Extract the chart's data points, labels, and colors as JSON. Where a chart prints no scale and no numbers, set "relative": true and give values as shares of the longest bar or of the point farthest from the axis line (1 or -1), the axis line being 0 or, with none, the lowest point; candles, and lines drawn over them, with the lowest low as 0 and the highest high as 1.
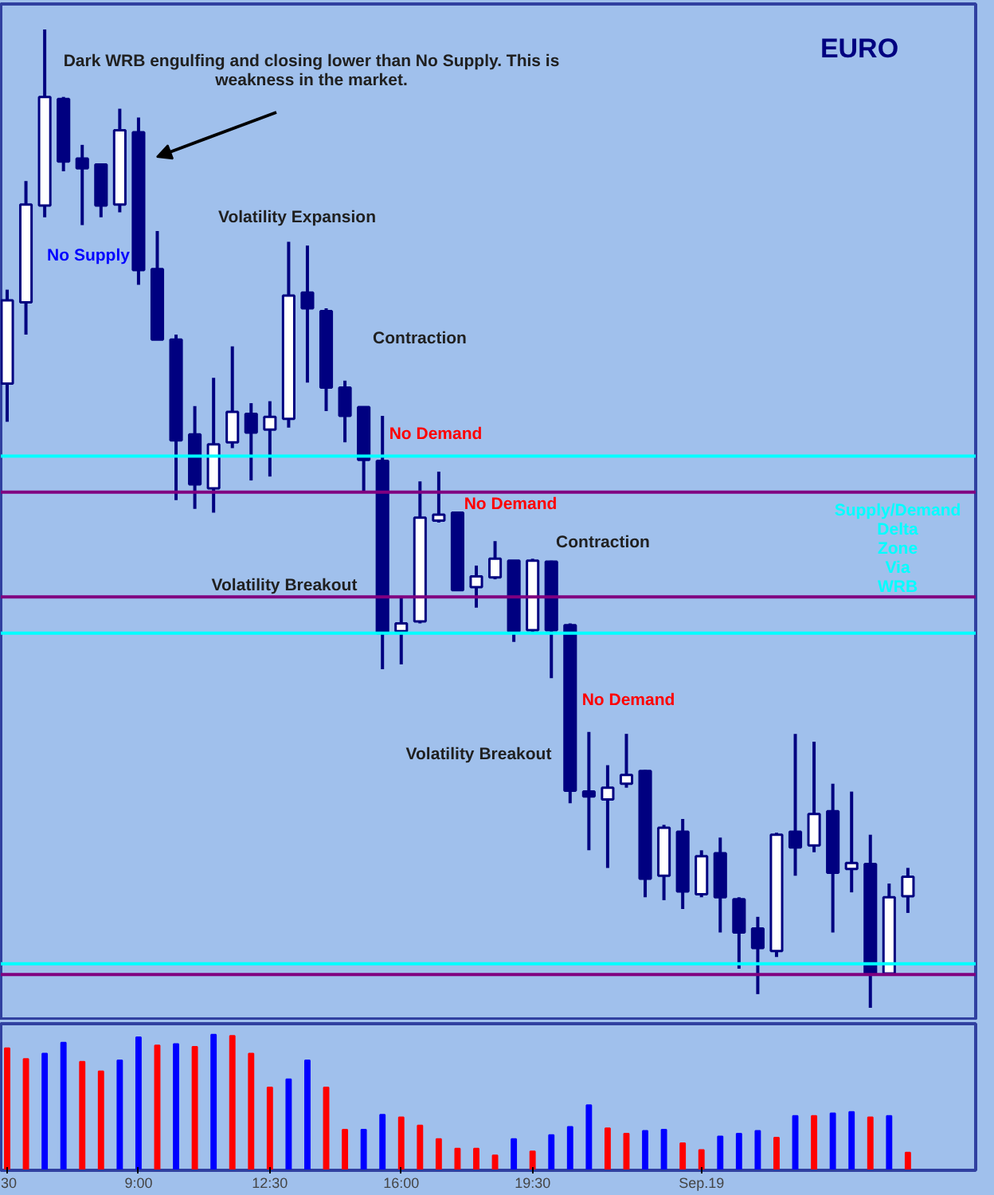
{
  "chart_data": [
    {
      "type": "candlestick",
      "title": "EURO",
      "relative": true,
      "categories": [
        null,
        null,
        null,
        null,
        null,
        null,
        null,
        null,
        null,
        null,
        null,
        null,
        null,
        null,
        null,
        null,
        null,
        null,
        null,
        null,
        null,
        null,
        null,
        null,
        null,
        null,
        null,
        null,
        null,
        null,
        null,
        null,
        null,
        null,
        null,
        null,
        null,
        null,
        null,
        null,
        null,
        null,
        null,
        null,
        null,
        null,
        null,
        null,
        null
      ],
      "ohlc": [
        [
          0.638,
          0.734,
          0.599,
          0.723
        ],
        [
          0.721,
          0.845,
          0.688,
          0.821
        ],
        [
          0.82,
          1,
          0.808,
          0.931
        ],
        [
          0.929,
          0.931,
          0.855,
          0.865
        ],
        [
          0.868,
          0.882,
          0.8,
          0.858
        ],
        [
          0.862,
          0.862,
          0.808,
          0.82
        ],
        [
          0.821,
          0.919,
          0.813,
          0.897
        ],
        [
          0.895,
          0.91,
          0.739,
          0.754
        ],
        [
          0.755,
          0.794,
          0.683,
          0.683
        ],
        [
          0.683,
          0.688,
          0.519,
          0.58
        ],
        [
          0.586,
          0.615,
          0.51,
          0.535
        ],
        [
          0.531,
          0.644,
          0.506,
          0.576
        ],
        [
          0.578,
          0.676,
          0.572,
          0.609
        ],
        [
          0.607,
          0.618,
          0.539,
          0.588
        ],
        [
          0.591,
          0.62,
          0.543,
          0.604
        ],
        [
          0.602,
          0.783,
          0.593,
          0.728
        ],
        [
          0.731,
          0.779,
          0.639,
          0.715
        ],
        [
          0.712,
          0.715,
          0.61,
          0.634
        ],
        [
          0.634,
          0.641,
          0.578,
          0.605
        ],
        [
          0.614,
          0.614,
          0.527,
          0.56
        ],
        [
          0.559,
          0.605,
          0.346,
          0.383
        ],
        [
          0.385,
          0.419,
          0.351,
          0.393
        ],
        [
          0.395,
          0.538,
          0.393,
          0.501
        ],
        [
          0.498,
          0.548,
          0.496,
          0.504
        ],
        [
          0.506,
          0.506,
          0.427,
          0.427
        ],
        [
          0.43,
          0.452,
          0.409,
          0.441
        ],
        [
          0.44,
          0.477,
          0.438,
          0.459
        ],
        [
          0.457,
          0.457,
          0.374,
          0.385
        ],
        [
          0.386,
          0.459,
          0.383,
          0.457
        ],
        [
          0.456,
          0.457,
          0.337,
          0.386
        ],
        [
          0.391,
          0.393,
          0.209,
          0.222
        ],
        [
          0.221,
          0.282,
          0.161,
          0.216
        ],
        [
          0.213,
          0.248,
          0.143,
          0.225
        ],
        [
          0.229,
          0.28,
          0.225,
          0.238
        ],
        [
          0.242,
          0.243,
          0.113,
          0.132
        ],
        [
          0.135,
          0.187,
          0.11,
          0.184
        ],
        [
          0.18,
          0.193,
          0.101,
          0.119
        ],
        [
          0.116,
          0.161,
          0.113,
          0.155
        ],
        [
          0.158,
          0.174,
          0.077,
          0.113
        ],
        [
          0.111,
          0.113,
          0.04,
          0.077
        ],
        [
          0.081,
          0.093,
          0.014,
          0.061
        ],
        [
          0.058,
          0.179,
          0.052,
          0.177
        ],
        [
          0.18,
          0.28,
          0.135,
          0.164
        ],
        [
          0.166,
          0.272,
          0.159,
          0.198
        ],
        [
          0.201,
          0.229,
          0.077,
          0.138
        ],
        [
          0.142,
          0.221,
          0.118,
          0.148
        ],
        [
          0.147,
          0.177,
          0,
          0.035
        ],
        [
          0.035,
          0.127,
          0.035,
          0.113
        ],
        [
          0.114,
          0.143,
          0.097,
          0.134
        ]
      ],
      "ref_lines": [
        {
          "axis": "y",
          "value": 0.564,
          "color": "#00ffff"
        },
        {
          "axis": "y",
          "value": 0.383,
          "color": "#00ffff"
        },
        {
          "axis": "y",
          "value": 0.045,
          "color": "#00ffff"
        },
        {
          "axis": "y",
          "value": 0.527,
          "color": "#800080"
        },
        {
          "axis": "y",
          "value": 0.42,
          "color": "#800080"
        },
        {
          "axis": "y",
          "value": 0.034,
          "color": "#800080"
        }
      ],
      "annotations": [
        "Dark WRB engulfing and closing lower than No Supply. This is weakness in the market.",
        "No Supply",
        "Volatility Expansion",
        "Contraction",
        "No Demand",
        "No Demand",
        "Contraction",
        "Volatility Breakout",
        "Volatility Breakout",
        "No Demand",
        "Supply/Demand Delta Zone Via WRB"
      ]
    },
    {
      "type": "bar",
      "relative": true,
      "categories": [
        "30",
        null,
        null,
        null,
        null,
        null,
        null,
        "9:00",
        null,
        null,
        null,
        null,
        null,
        null,
        "12:30",
        null,
        null,
        null,
        null,
        null,
        null,
        "16:00",
        null,
        null,
        null,
        null,
        null,
        null,
        "19:30",
        null,
        null,
        null,
        null,
        null,
        null,
        null,
        null,
        "Sep.19",
        null,
        null,
        null,
        null,
        null,
        null,
        null,
        null,
        null,
        null,
        null
      ],
      "values": [
        0.9,
        0.82,
        0.86,
        0.94,
        0.8,
        0.73,
        0.81,
        0.98,
        0.92,
        0.93,
        0.91,
        1,
        0.99,
        0.86,
        0.61,
        0.67,
        0.81,
        0.61,
        0.3,
        0.3,
        0.41,
        0.39,
        0.33,
        0.23,
        0.16,
        0.16,
        0.11,
        0.23,
        0.14,
        0.26,
        0.32,
        0.48,
        0.31,
        0.27,
        0.29,
        0.3,
        0.2,
        0.15,
        0.25,
        0.27,
        0.29,
        0.24,
        0.4,
        0.4,
        0.42,
        0.43,
        0.39,
        0.4,
        0.13
      ],
      "colors": [
        "#ff0000",
        "#ff0000",
        "#0000ff",
        "#0000ff",
        "#ff0000",
        "#ff0000",
        "#0000ff",
        "#0000ff",
        "#ff0000",
        "#0000ff",
        "#ff0000",
        "#0000ff",
        "#ff0000",
        "#ff0000",
        "#ff0000",
        "#0000ff",
        "#0000ff",
        "#ff0000",
        "#ff0000",
        "#0000ff",
        "#0000ff",
        "#ff0000",
        "#ff0000",
        "#ff0000",
        "#ff0000",
        "#ff0000",
        "#ff0000",
        "#0000ff",
        "#ff0000",
        "#0000ff",
        "#0000ff",
        "#0000ff",
        "#ff0000",
        "#ff0000",
        "#0000ff",
        "#0000ff",
        "#ff0000",
        "#ff0000",
        "#0000ff",
        "#0000ff",
        "#0000ff",
        "#ff0000",
        "#0000ff",
        "#ff0000",
        "#0000ff",
        "#0000ff",
        "#ff0000",
        "#0000ff",
        "#ff0000"
      ]
    }
  ]
}
